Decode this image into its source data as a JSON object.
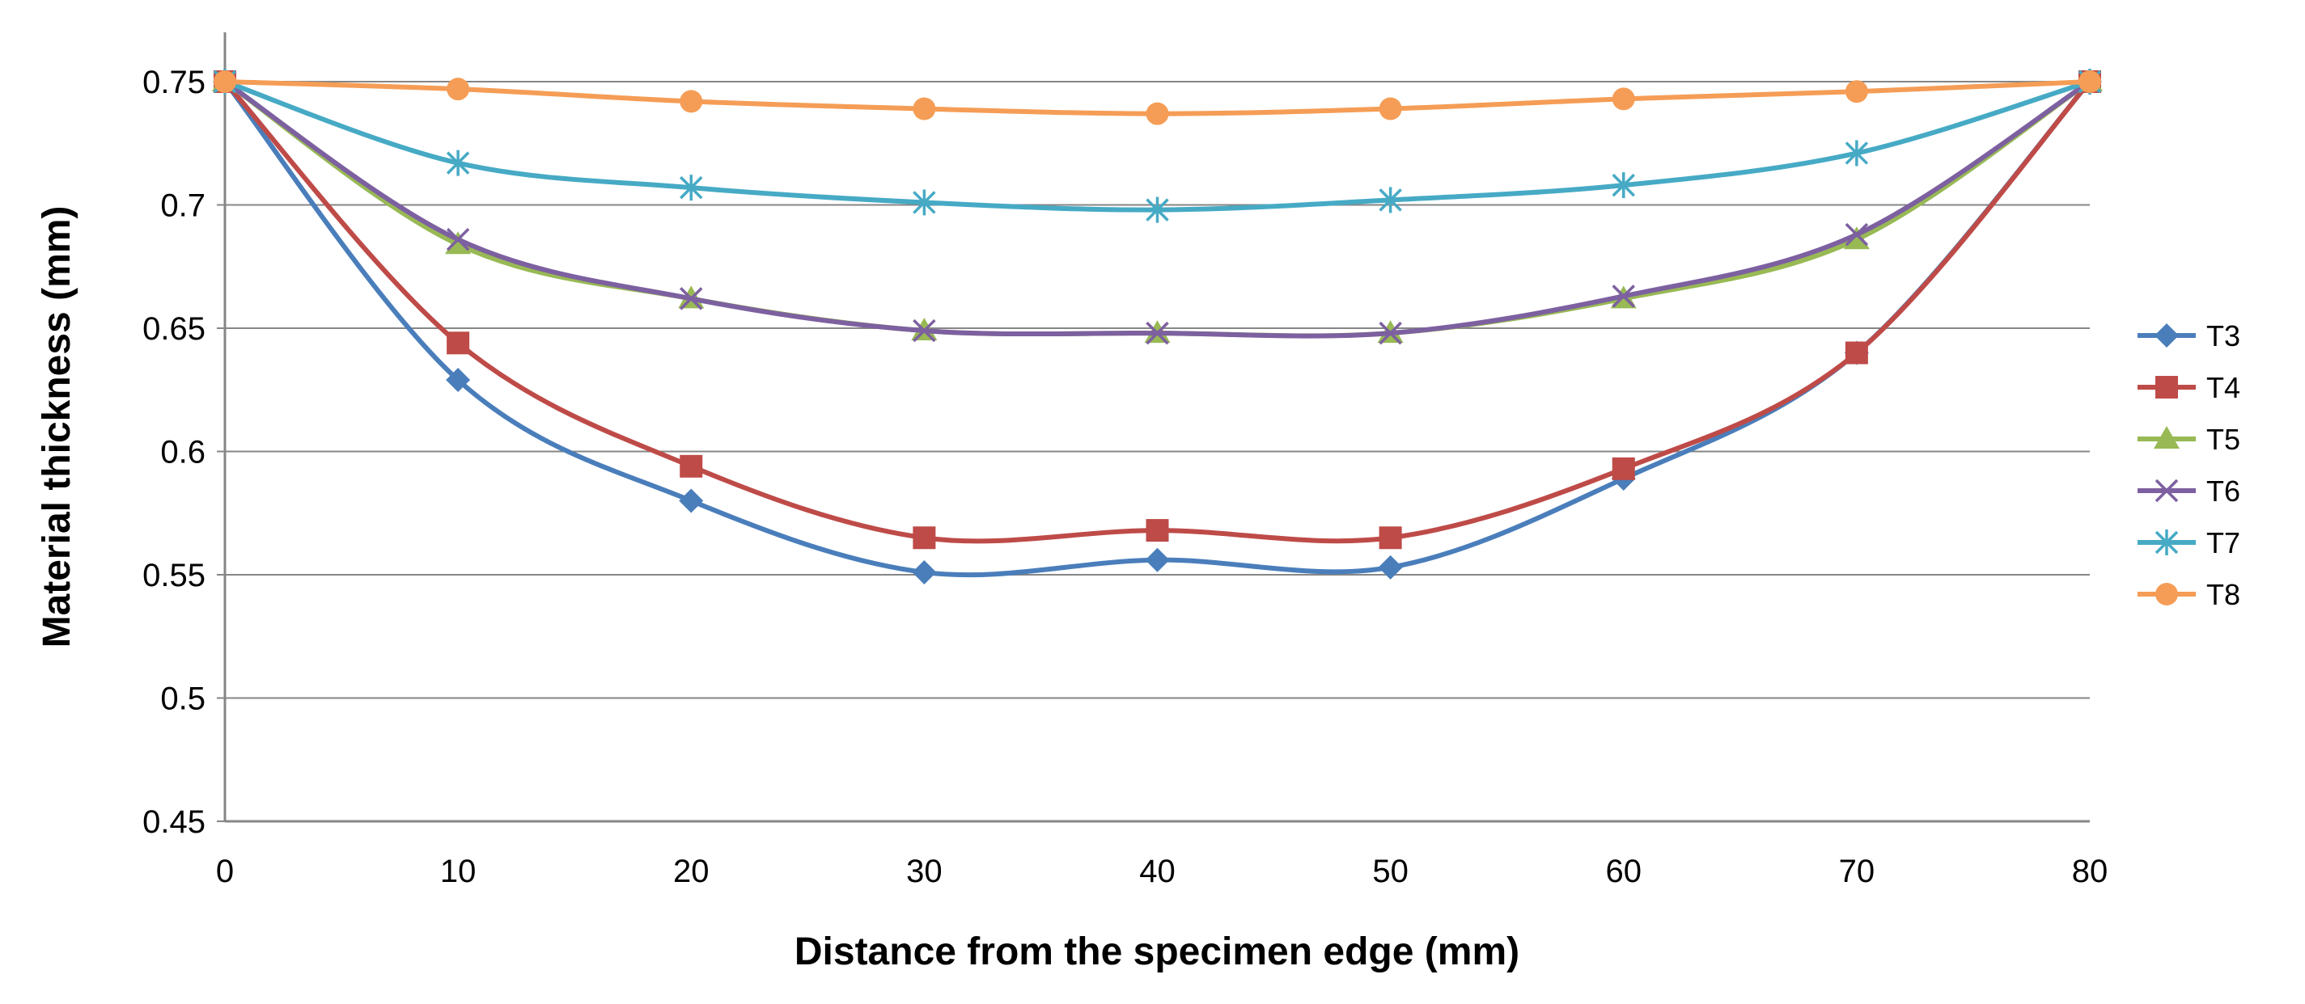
{
  "chart_data": {
    "type": "line",
    "title": "",
    "xlabel": "Distance from the specimen edge (mm)",
    "ylabel": "Material thickness (mm)",
    "x": [
      0,
      10,
      20,
      30,
      40,
      50,
      60,
      70,
      80
    ],
    "xlim": [
      0,
      80
    ],
    "ylim": [
      0.45,
      0.77
    ],
    "xticks": [
      "0",
      "10",
      "20",
      "30",
      "40",
      "50",
      "60",
      "70",
      "80"
    ],
    "yticks": [
      "0.45",
      "0.5",
      "0.55",
      "0.6",
      "0.65",
      "0.7",
      "0.75"
    ],
    "grid": "horizontal",
    "legend_position": "right",
    "series": [
      {
        "name": "T3",
        "color": "#4a7ebb",
        "marker": "diamond",
        "values": [
          0.75,
          0.629,
          0.58,
          0.551,
          0.556,
          0.553,
          0.589,
          0.64,
          0.75
        ]
      },
      {
        "name": "T4",
        "color": "#be4b48",
        "marker": "square",
        "values": [
          0.75,
          0.644,
          0.594,
          0.565,
          0.568,
          0.565,
          0.593,
          0.64,
          0.75
        ]
      },
      {
        "name": "T5",
        "color": "#98b954",
        "marker": "triangle",
        "values": [
          0.75,
          0.684,
          0.662,
          0.649,
          0.648,
          0.648,
          0.662,
          0.686,
          0.75
        ]
      },
      {
        "name": "T6",
        "color": "#7d60a0",
        "marker": "x",
        "values": [
          0.75,
          0.686,
          0.662,
          0.649,
          0.648,
          0.648,
          0.663,
          0.688,
          0.75
        ]
      },
      {
        "name": "T7",
        "color": "#46aac5",
        "marker": "star",
        "values": [
          0.75,
          0.717,
          0.707,
          0.701,
          0.698,
          0.702,
          0.708,
          0.721,
          0.75
        ]
      },
      {
        "name": "T8",
        "color": "#f59d56",
        "marker": "circle",
        "values": [
          0.75,
          0.747,
          0.742,
          0.739,
          0.737,
          0.739,
          0.743,
          0.746,
          0.75
        ]
      }
    ]
  }
}
